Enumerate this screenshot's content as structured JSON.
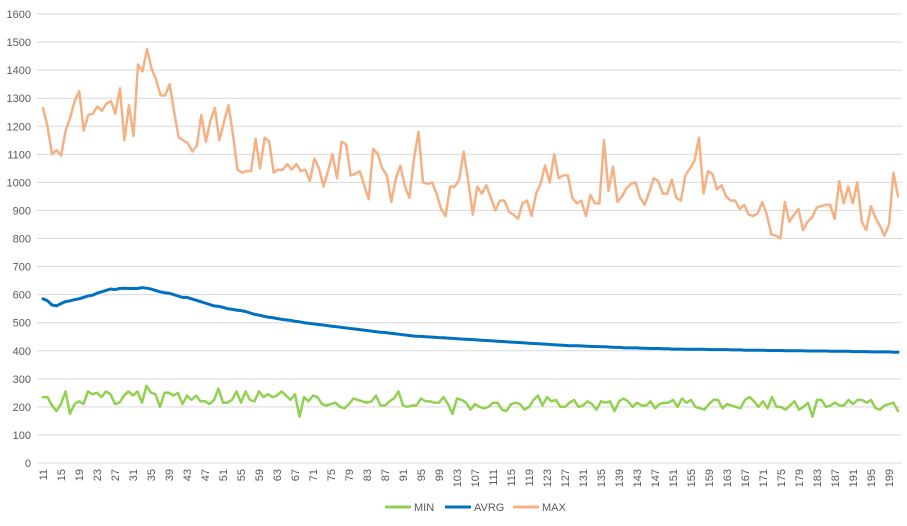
{
  "chart_data": {
    "type": "line",
    "grid": true,
    "legend": "bottom",
    "ylim": [
      0,
      1600
    ],
    "yticks": [
      0,
      100,
      200,
      300,
      400,
      500,
      600,
      700,
      800,
      900,
      1000,
      1100,
      1200,
      1300,
      1400,
      1500,
      1600
    ],
    "x_start": 11,
    "x_end": 201,
    "xtick_labels": [
      "11",
      "15",
      "19",
      "23",
      "27",
      "31",
      "35",
      "39",
      "43",
      "47",
      "51",
      "55",
      "59",
      "63",
      "67",
      "71",
      "75",
      "79",
      "83",
      "87",
      "91",
      "95",
      "99",
      "103",
      "107",
      "111",
      "115",
      "119",
      "123",
      "127",
      "131",
      "135",
      "139",
      "143",
      "147",
      "151",
      "155",
      "159",
      "163",
      "167",
      "171",
      "175",
      "179",
      "183",
      "187",
      "191",
      "195",
      "199"
    ],
    "series": [
      {
        "name": "MIN",
        "color": "#92d050",
        "values": [
          235,
          235,
          205,
          185,
          210,
          255,
          175,
          210,
          220,
          210,
          255,
          245,
          250,
          235,
          255,
          245,
          210,
          215,
          240,
          255,
          240,
          255,
          215,
          275,
          250,
          245,
          200,
          250,
          250,
          240,
          250,
          210,
          240,
          225,
          240,
          220,
          220,
          210,
          225,
          265,
          215,
          215,
          225,
          255,
          215,
          255,
          225,
          220,
          255,
          235,
          245,
          235,
          240,
          255,
          240,
          225,
          245,
          165,
          235,
          220,
          240,
          235,
          210,
          205,
          210,
          215,
          200,
          195,
          210,
          230,
          225,
          220,
          215,
          220,
          240,
          205,
          205,
          220,
          230,
          255,
          205,
          200,
          205,
          205,
          230,
          220,
          220,
          215,
          215,
          235,
          210,
          175,
          230,
          225,
          215,
          190,
          210,
          200,
          195,
          200,
          215,
          215,
          190,
          185,
          210,
          215,
          210,
          190,
          200,
          225,
          240,
          205,
          235,
          220,
          225,
          200,
          200,
          215,
          225,
          200,
          205,
          220,
          210,
          190,
          220,
          215,
          220,
          185,
          220,
          230,
          220,
          200,
          215,
          205,
          205,
          220,
          195,
          210,
          215,
          215,
          225,
          200,
          230,
          215,
          225,
          200,
          195,
          190,
          210,
          225,
          225,
          195,
          210,
          205,
          200,
          195,
          225,
          235,
          220,
          200,
          220,
          195,
          235,
          200,
          200,
          190,
          205,
          220,
          190,
          200,
          215,
          165,
          225,
          225,
          200,
          205,
          215,
          205,
          205,
          225,
          210,
          225,
          225,
          215,
          225,
          195,
          190,
          205,
          210,
          215,
          185
        ]
      },
      {
        "name": "AVRG",
        "color": "#0070c0",
        "values": [
          585,
          578,
          563,
          560,
          568,
          575,
          578,
          582,
          585,
          590,
          595,
          598,
          605,
          610,
          615,
          620,
          618,
          622,
          623,
          622,
          622,
          622,
          625,
          623,
          620,
          615,
          610,
          607,
          605,
          600,
          595,
          590,
          590,
          585,
          580,
          575,
          570,
          565,
          560,
          558,
          555,
          550,
          548,
          545,
          543,
          540,
          535,
          530,
          527,
          523,
          520,
          518,
          515,
          512,
          510,
          508,
          505,
          503,
          500,
          498,
          496,
          494,
          492,
          490,
          488,
          486,
          484,
          482,
          480,
          478,
          476,
          474,
          472,
          470,
          468,
          466,
          465,
          463,
          461,
          459,
          457,
          455,
          453,
          452,
          451,
          450,
          449,
          448,
          447,
          446,
          445,
          444,
          443,
          442,
          441,
          440,
          439,
          438,
          437,
          436,
          435,
          434,
          433,
          432,
          431,
          430,
          429,
          428,
          427,
          426,
          425,
          424,
          423,
          422,
          421,
          420,
          419,
          418,
          418,
          418,
          417,
          416,
          415,
          415,
          414,
          414,
          413,
          412,
          412,
          411,
          410,
          410,
          410,
          409,
          409,
          408,
          408,
          408,
          407,
          407,
          406,
          406,
          406,
          405,
          405,
          405,
          405,
          405,
          404,
          404,
          404,
          404,
          404,
          403,
          403,
          403,
          402,
          402,
          402,
          402,
          402,
          401,
          401,
          401,
          401,
          400,
          400,
          400,
          400,
          400,
          399,
          399,
          399,
          399,
          399,
          398,
          398,
          398,
          398,
          398,
          397,
          397,
          397,
          397,
          396,
          396,
          396,
          396,
          396,
          395,
          395
        ]
      },
      {
        "name": "MAX",
        "color": "#f4b183",
        "values": [
          1265,
          1200,
          1100,
          1115,
          1095,
          1185,
          1230,
          1290,
          1325,
          1185,
          1240,
          1245,
          1270,
          1255,
          1280,
          1290,
          1245,
          1335,
          1150,
          1275,
          1165,
          1420,
          1395,
          1475,
          1405,
          1365,
          1310,
          1310,
          1350,
          1250,
          1160,
          1150,
          1140,
          1110,
          1130,
          1240,
          1145,
          1220,
          1265,
          1150,
          1215,
          1275,
          1170,
          1045,
          1035,
          1040,
          1040,
          1155,
          1050,
          1160,
          1145,
          1035,
          1045,
          1045,
          1065,
          1045,
          1065,
          1040,
          1045,
          1005,
          1085,
          1050,
          985,
          1040,
          1100,
          1015,
          1145,
          1135,
          1025,
          1030,
          1040,
          990,
          940,
          1120,
          1100,
          1050,
          1025,
          930,
          1015,
          1060,
          985,
          945,
          1085,
          1180,
          1000,
          995,
          1000,
          960,
          905,
          880,
          985,
          985,
          1010,
          1110,
          1005,
          885,
          985,
          960,
          990,
          945,
          900,
          935,
          935,
          895,
          885,
          870,
          925,
          935,
          880,
          960,
          995,
          1060,
          1000,
          1100,
          1015,
          1025,
          1025,
          945,
          925,
          935,
          880,
          955,
          925,
          925,
          1150,
          970,
          1055,
          930,
          950,
          980,
          995,
          1000,
          945,
          920,
          965,
          1015,
          1005,
          960,
          960,
          1010,
          945,
          935,
          1025,
          1050,
          1075,
          1160,
          960,
          1040,
          1030,
          975,
          990,
          950,
          935,
          935,
          905,
          920,
          885,
          880,
          890,
          930,
          885,
          815,
          810,
          800,
          930,
          860,
          885,
          905,
          830,
          860,
          875,
          910,
          915,
          920,
          920,
          870,
          1005,
          925,
          985,
          925,
          1000,
          860,
          830,
          915,
          875,
          845,
          810,
          850,
          1035,
          950
        ]
      }
    ]
  }
}
